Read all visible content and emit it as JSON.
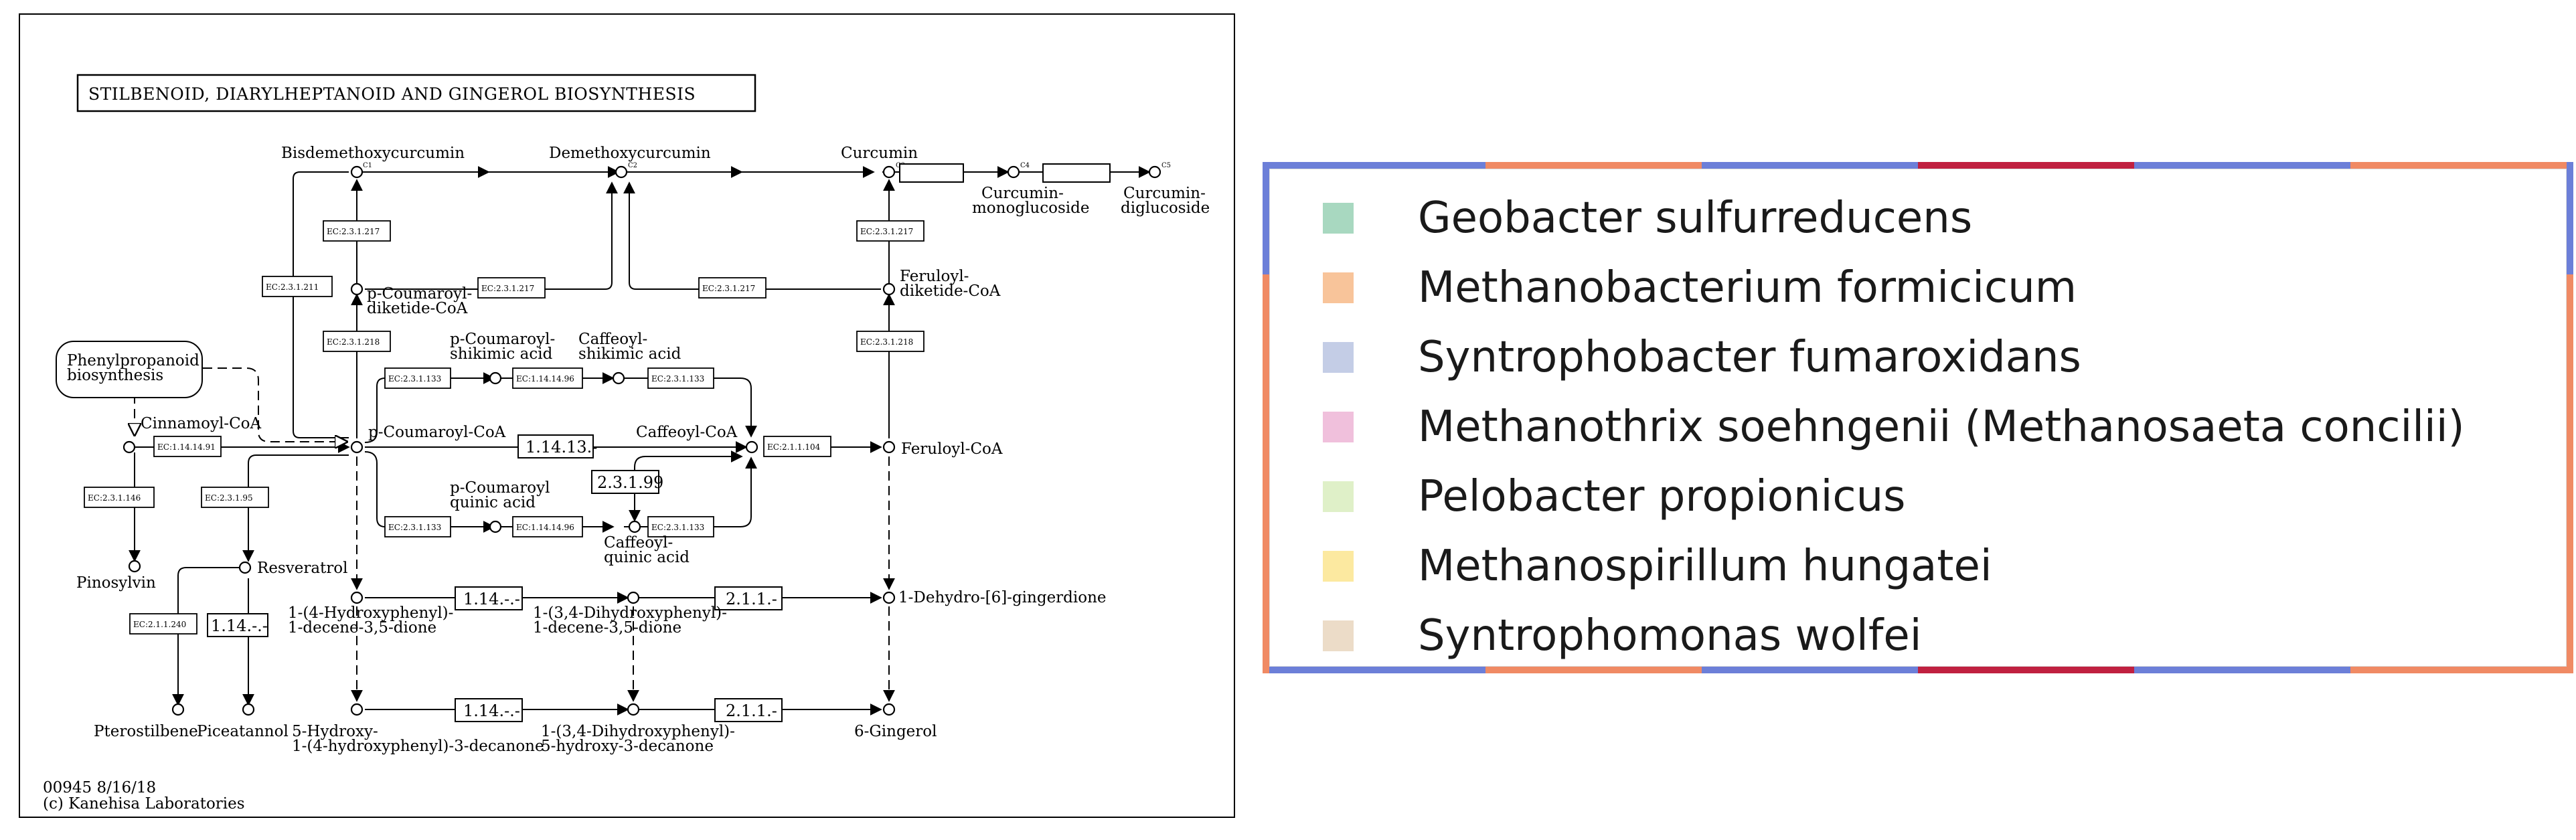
{
  "pathway": {
    "title": "STILBENOID, DIARYLHEPTANOID AND GINGEROL BIOSYNTHESIS",
    "footer_id": "00945 8/16/18",
    "footer_copyright": "(c) Kanehisa Laboratories",
    "compounds": {
      "bisdemethoxycurcumin": "Bisdemethoxycurcumin",
      "demethoxycurcumin": "Demethoxycurcumin",
      "curcumin": "Curcumin",
      "curcumin_monoglucoside_1": "Curcumin-",
      "curcumin_monoglucoside_2": "monoglucoside",
      "curcumin_diglucoside_1": "Curcumin-",
      "curcumin_diglucoside_2": "diglucoside",
      "pcoumaroyl_diketide_1": "p-Coumaroyl-",
      "pcoumaroyl_diketide_2": "diketide-CoA",
      "feruloyl_diketide_1": "Feruloyl-",
      "feruloyl_diketide_2": "diketide-CoA",
      "phenylpropanoid_1": "Phenylpropanoid",
      "phenylpropanoid_2": "biosynthesis",
      "pcoumaroyl_shikimic_1": "p-Coumaroyl-",
      "pcoumaroyl_shikimic_2": "shikimic acid",
      "caffeoyl_shikimic_1": "Caffeoyl-",
      "caffeoyl_shikimic_2": "shikimic acid",
      "cinnamoyl_coa": "Cinnamoyl-CoA",
      "pcoumaroyl_coa": "p-Coumaroyl-CoA",
      "caffeoyl_coa": "Caffeoyl-CoA",
      "feruloyl_coa": "Feruloyl-CoA",
      "pcoumaroyl_quinic_1": "p-Coumaroyl",
      "pcoumaroyl_quinic_2": "quinic acid",
      "caffeoyl_quinic_1": "Caffeoyl-",
      "caffeoyl_quinic_2": "quinic acid",
      "pinosylvin": "Pinosylvin",
      "resveratrol": "Resveratrol",
      "hydroxyphenyl_decene_1": "1-(4-Hydroxyphenyl)-",
      "hydroxyphenyl_decene_2": "1-decene-3,5-dione",
      "dihydroxyphenyl_decene_1": "1-(3,4-Dihydroxyphenyl)-",
      "dihydroxyphenyl_decene_2": "1-decene-3,5-dione",
      "dehydro_gingerdione": "1-Dehydro-[6]-gingerdione",
      "pterostilbene": "Pterostilbene",
      "piceatannol": "Piceatannol",
      "hydroxy_decanone_1": "5-Hydroxy-",
      "hydroxy_decanone_2": "1-(4-hydroxyphenyl)-3-decanone",
      "dihydroxy_decanone_1": "1-(3,4-Dihydroxyphenyl)-",
      "dihydroxy_decanone_2": "5-hydroxy-3-decanone",
      "gingerol": "6-Gingerol"
    },
    "enzymes": {
      "e_2_3_1_211": "EC:2.3.1.211",
      "e_2_3_1_217_a": "EC:2.3.1.217",
      "e_2_3_1_217_b": "EC:2.3.1.217",
      "e_2_3_1_217_c": "EC:2.3.1.217",
      "e_2_3_1_217_d": "EC:2.3.1.217",
      "e_2_3_1_218_a": "EC:2.3.1.218",
      "e_2_3_1_218_b": "EC:2.3.1.218",
      "e_2_3_1_133_a": "EC:2.3.1.133",
      "e_1_14_14_96_a": "EC:1.14.14.96",
      "e_2_3_1_133_b": "EC:2.3.1.133",
      "e_1_14_14_91": "EC:1.14.14.91",
      "e_1_14_13": "1.14.13.-",
      "e_2_1_1_104": "EC:2.1.1.104",
      "e_2_3_1_99": "2.3.1.99",
      "e_2_3_1_146": "EC:2.3.1.146",
      "e_2_3_1_95": "EC:2.3.1.95",
      "e_2_3_1_133_c": "EC:2.3.1.133",
      "e_1_14_14_96_b": "EC:1.14.14.96",
      "e_2_3_1_133_d": "EC:2.3.1.133",
      "e_1_14_a": "1.14.-.-",
      "e_2_1_1_a": "2.1.1.-",
      "e_2_1_1_240": "EC:2.1.1.240",
      "e_1_14_b": "1.14.-.-",
      "e_1_14_c": "1.14.-.-",
      "e_2_1_1_b": "2.1.1.-"
    }
  },
  "legend": {
    "items": [
      {
        "label": "Geobacter sulfurreducens",
        "color": "#a8d8c0"
      },
      {
        "label": "Methanobacterium formicicum",
        "color": "#f8c49a"
      },
      {
        "label": "Syntrophobacter fumaroxidans",
        "color": "#c4cde6"
      },
      {
        "label": "Methanothrix soehngenii (Methanosaeta concilii)",
        "color": "#f0c0dc"
      },
      {
        "label": "Pelobacter propionicus",
        "color": "#dff0c8"
      },
      {
        "label": "Methanospirillum hungatei",
        "color": "#fce9a0"
      },
      {
        "label": "Syntrophomonas wolfei",
        "color": "#ecdcc8"
      }
    ],
    "strip_colors": [
      "#6c7fd8",
      "#f08a64",
      "#6c7fd8",
      "#c02040",
      "#6c7fd8",
      "#f08a64"
    ]
  }
}
